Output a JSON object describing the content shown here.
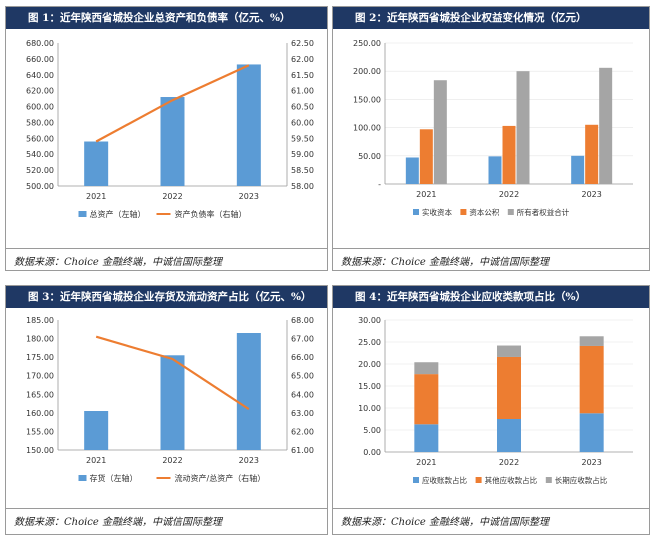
{
  "colors": {
    "blue": "#5b9bd5",
    "orange": "#ed7d31",
    "gray": "#a5a5a5",
    "header": "#1f3864"
  },
  "source": "数据来源：Choice 金融终端，中诚信国际整理",
  "chart_data": [
    {
      "type": "bar",
      "title": "图 1：近年陕西省城投企业总资产和负债率（亿元、%）",
      "categories": [
        "2021",
        "2022",
        "2023"
      ],
      "series": [
        {
          "name": "总资产（左轴）",
          "type": "bar",
          "axis": "left",
          "values": [
            556,
            612,
            653
          ]
        },
        {
          "name": "资产负债率（右轴）",
          "type": "line",
          "axis": "right",
          "values": [
            59.4,
            60.7,
            61.8
          ]
        }
      ],
      "ylim_left": [
        500,
        680
      ],
      "yticks_left": [
        "500.00",
        "520.00",
        "540.00",
        "560.00",
        "580.00",
        "600.00",
        "620.00",
        "640.00",
        "660.00",
        "680.00"
      ],
      "ylim_right": [
        58,
        62.5
      ],
      "yticks_right": [
        "58.00",
        "58.50",
        "59.00",
        "59.50",
        "60.00",
        "60.50",
        "61.00",
        "61.50",
        "62.00",
        "62.50"
      ]
    },
    {
      "type": "bar",
      "title": "图 2：近年陕西省城投企业权益变化情况（亿元）",
      "categories": [
        "2021",
        "2022",
        "2023"
      ],
      "series": [
        {
          "name": "实收资本",
          "values": [
            47,
            49,
            50
          ]
        },
        {
          "name": "资本公积",
          "values": [
            97,
            103,
            105
          ]
        },
        {
          "name": "所有者权益合计",
          "values": [
            184,
            200,
            206
          ]
        }
      ],
      "ylim": [
        0,
        250
      ],
      "yticks": [
        "-",
        "50.00",
        "100.00",
        "150.00",
        "200.00",
        "250.00"
      ]
    },
    {
      "type": "bar",
      "title": "图 3：近年陕西省城投企业存货及流动资产占比（亿元、%）",
      "categories": [
        "2021",
        "2022",
        "2023"
      ],
      "series": [
        {
          "name": "存货（左轴）",
          "type": "bar",
          "axis": "left",
          "values": [
            160.5,
            175.5,
            181.5
          ]
        },
        {
          "name": "流动资产/总资产（右轴）",
          "type": "line",
          "axis": "right",
          "values": [
            67.1,
            65.9,
            63.2
          ]
        }
      ],
      "ylim_left": [
        150,
        185
      ],
      "yticks_left": [
        "150.00",
        "155.00",
        "160.00",
        "165.00",
        "170.00",
        "175.00",
        "180.00",
        "185.00"
      ],
      "ylim_right": [
        61,
        68
      ],
      "yticks_right": [
        "61.00",
        "62.00",
        "63.00",
        "64.00",
        "65.00",
        "66.00",
        "67.00",
        "68.00"
      ]
    },
    {
      "type": "bar",
      "stacked": true,
      "title": "图 4：近年陕西省城投企业应收类款项占比（%）",
      "categories": [
        "2021",
        "2022",
        "2023"
      ],
      "series": [
        {
          "name": "应收账款占比",
          "values": [
            6.3,
            7.5,
            8.8
          ]
        },
        {
          "name": "其他应收款占比",
          "values": [
            11.4,
            14.1,
            15.3
          ]
        },
        {
          "name": "长期应收款占比",
          "values": [
            2.7,
            2.6,
            2.2
          ]
        }
      ],
      "ylim": [
        0,
        30
      ],
      "yticks": [
        "0.00",
        "5.00",
        "10.00",
        "15.00",
        "20.00",
        "25.00",
        "30.00"
      ]
    }
  ]
}
